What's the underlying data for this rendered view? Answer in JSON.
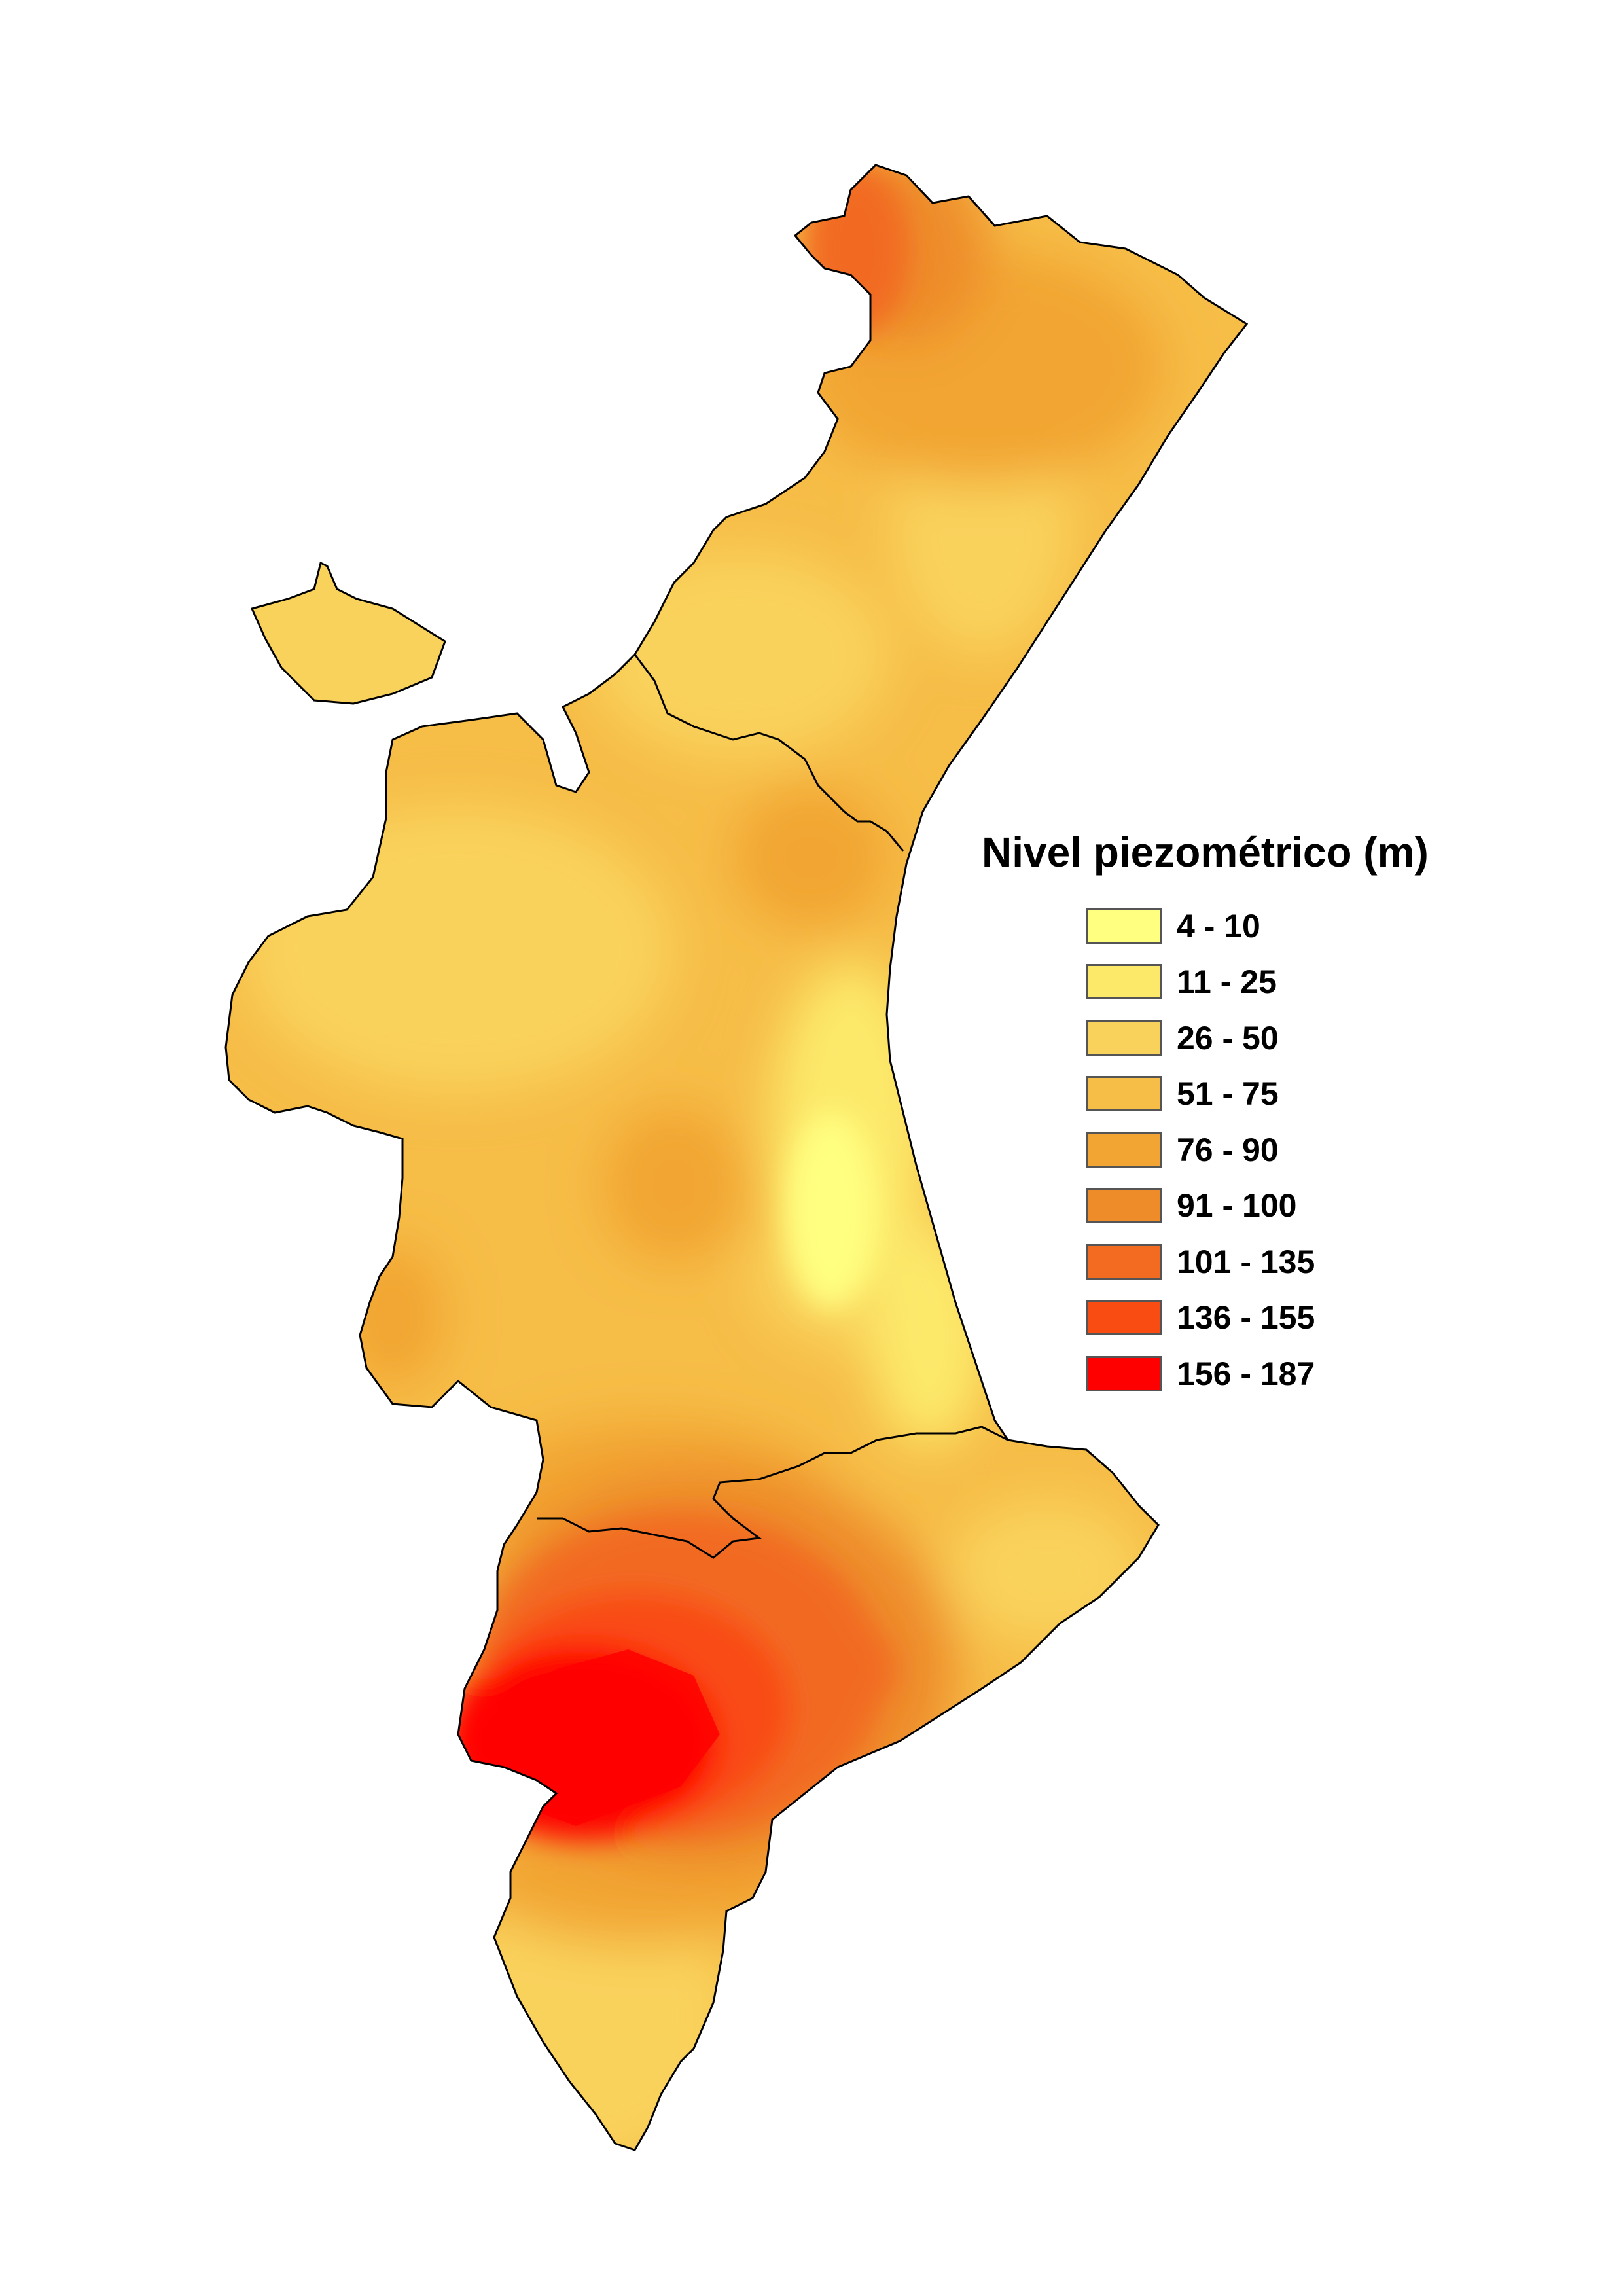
{
  "legend": {
    "title": "Nivel piezométrico (m)",
    "classes": [
      {
        "label": "4 - 10",
        "color": "#FFFF80"
      },
      {
        "label": "11 - 25",
        "color": "#FCE96A"
      },
      {
        "label": "26 - 50",
        "color": "#F9D25B"
      },
      {
        "label": "51 - 75",
        "color": "#F6BD47"
      },
      {
        "label": "76 - 90",
        "color": "#F2A532"
      },
      {
        "label": "91 - 100",
        "color": "#EE8C2A"
      },
      {
        "label": "101 - 135",
        "color": "#F26B21"
      },
      {
        "label": "136 - 155",
        "color": "#F94C12"
      },
      {
        "label": "156 - 187",
        "color": "#FF0000"
      }
    ]
  },
  "map": {
    "colors": {
      "outline": "#000000",
      "background": "#FFFFFF"
    }
  }
}
